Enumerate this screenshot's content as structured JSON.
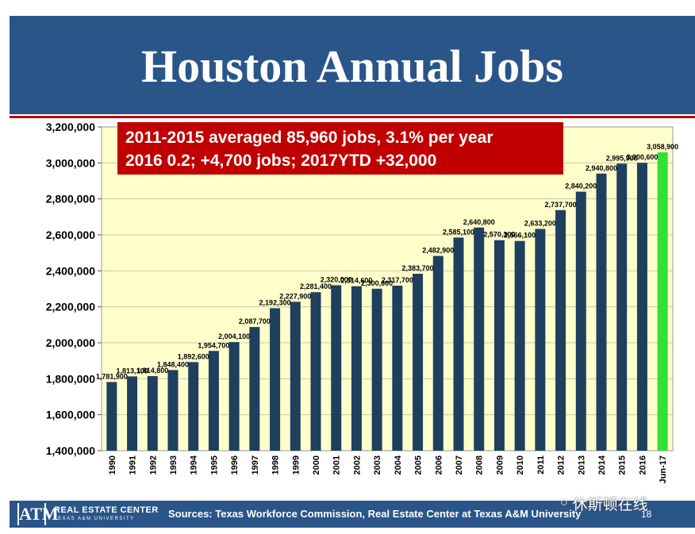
{
  "slide": {
    "title": "Houston Annual Jobs",
    "callout_line1": "2011-2015 averaged 85,960 jobs, 3.1% per year",
    "callout_line2": "2016 0.2; +4,700 jobs; 2017YTD +32,000",
    "footer_org": "REAL ESTATE CENTER",
    "footer_org_sub": "TEXAS A&M UNIVERSITY",
    "footer_sources": "Sources: Texas Workforce Commission, Real Estate Center at Texas A&M University",
    "page_number": "18",
    "logo_text": "ATM",
    "watermark_text": "休斯顿在线",
    "watermark_icon": "wechat-icon",
    "colors": {
      "title_band": "#2a5589",
      "accent_red": "#c00000",
      "bar": "#1f3f5f",
      "bar_highlight": "#33e033",
      "plot_bg": "#ffffcc"
    }
  },
  "chart_data": {
    "type": "bar",
    "title": "Houston Annual Jobs",
    "xlabel": "",
    "ylabel": "",
    "ylim": [
      1400000,
      3200000
    ],
    "y_ticks": [
      1400000,
      1600000,
      1800000,
      2000000,
      2200000,
      2400000,
      2600000,
      2800000,
      3000000,
      3200000
    ],
    "y_tick_labels": [
      "1,400,000",
      "1,600,000",
      "1,800,000",
      "2,000,000",
      "2,200,000",
      "2,400,000",
      "2,600,000",
      "2,800,000",
      "3,000,000",
      "3,200,000"
    ],
    "grid": "horizontal",
    "categories": [
      "1990",
      "1991",
      "1992",
      "1993",
      "1994",
      "1995",
      "1996",
      "1997",
      "1998",
      "1999",
      "2000",
      "2001",
      "2002",
      "2003",
      "2004",
      "2005",
      "2006",
      "2007",
      "2008",
      "2009",
      "2010",
      "2011",
      "2012",
      "2013",
      "2014",
      "2015",
      "2016",
      "Jun-17"
    ],
    "values": [
      1781900,
      1813100,
      1814800,
      1848400,
      1892600,
      1954700,
      2004100,
      2087700,
      2192300,
      2227900,
      2281400,
      2320000,
      2314600,
      2300600,
      2317700,
      2383700,
      2482900,
      2585100,
      2640800,
      2570300,
      2566100,
      2633200,
      2737700,
      2840200,
      2940800,
      2995900,
      3000600,
      3058900
    ],
    "data_labels": [
      "1,781,900",
      "1,813,100",
      "1,814,800",
      "1,848,400",
      "1,892,600",
      "1,954,700",
      "2,004,100",
      "2,087,700",
      "2,192,300",
      "2,227,900",
      "2,281,400",
      "2,320,000",
      "2,314,600",
      "2,300,600",
      "2,317,700",
      "2,383,700",
      "2,482,900",
      "2,585,100",
      "2,640,800",
      "2,570,300",
      "2,566,100",
      "2,633,200",
      "2,737,700",
      "2,840,200",
      "2,940,800",
      "2,995,900",
      "3,000,600",
      "3,058,900"
    ],
    "highlight_index": 27
  }
}
